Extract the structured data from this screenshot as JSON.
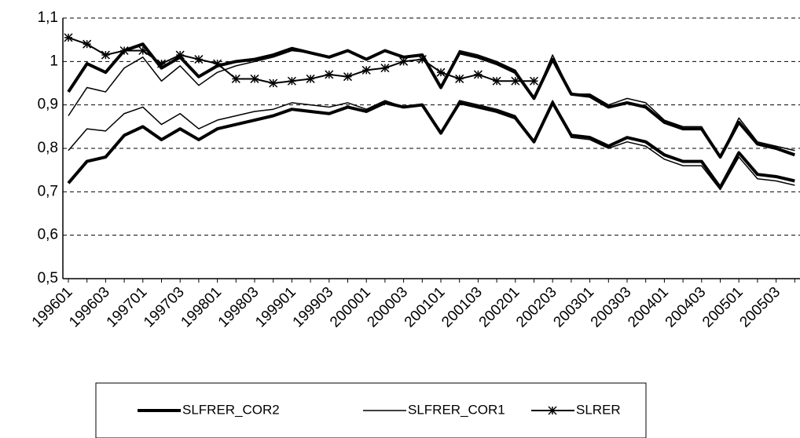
{
  "chart_data": {
    "type": "line",
    "categories": [
      "199601",
      null,
      "199603",
      null,
      "199701",
      null,
      "199703",
      null,
      "199801",
      null,
      "199803",
      null,
      "199901",
      null,
      "199903",
      null,
      "200001",
      null,
      "200003",
      null,
      "200101",
      null,
      "200103",
      null,
      "200201",
      null,
      "200203",
      null,
      "200301",
      null,
      "200303",
      null,
      "200401",
      null,
      "200403",
      null,
      "200501",
      null,
      "200503",
      null
    ],
    "ylim": [
      0.5,
      1.1
    ],
    "yticks": [
      {
        "value": 0.5,
        "label": "0,5"
      },
      {
        "value": 0.6,
        "label": "0,6"
      },
      {
        "value": 0.7,
        "label": "0,7"
      },
      {
        "value": 0.8,
        "label": "0,8"
      },
      {
        "value": 0.9,
        "label": "0,9"
      },
      1,
      {
        "value": 1.1,
        "label": "1,1"
      }
    ],
    "grid": true,
    "legend": "bottom",
    "series": [
      {
        "name": "SLFRER_COR2",
        "color": "#000000",
        "width": 4,
        "lines": [
          [
            0.93,
            0.995,
            0.975,
            1.025,
            1.04,
            0.985,
            1.01,
            0.965,
            0.99,
            1.0,
            1.005,
            1.015,
            1.03,
            1.02,
            1.01,
            1.025,
            1.005,
            1.025,
            1.01,
            1.015,
            0.94,
            1.02,
            1.01,
            0.995,
            0.975,
            0.915,
            1.005,
            0.925,
            0.92,
            0.895,
            0.905,
            0.895,
            0.86,
            0.845,
            0.845,
            0.78,
            0.86,
            0.81,
            0.8,
            0.785
          ],
          [
            0.72,
            0.77,
            0.78,
            0.83,
            0.85,
            0.82,
            0.845,
            0.82,
            0.845,
            0.855,
            0.865,
            0.875,
            0.89,
            0.885,
            0.88,
            0.895,
            0.885,
            0.905,
            0.895,
            0.9,
            0.835,
            0.905,
            0.895,
            0.885,
            0.87,
            0.815,
            0.905,
            0.83,
            0.825,
            0.805,
            0.825,
            0.815,
            0.785,
            0.77,
            0.77,
            0.71,
            0.79,
            0.74,
            0.735,
            0.725
          ]
        ]
      },
      {
        "name": "SLFRER_COR1",
        "color": "#000000",
        "width": 1.5,
        "lines": [
          [
            0.875,
            0.94,
            0.93,
            0.985,
            1.01,
            0.955,
            0.99,
            0.945,
            0.975,
            0.99,
            1.0,
            1.01,
            1.025,
            1.02,
            1.01,
            1.025,
            1.005,
            1.025,
            1.01,
            1.015,
            0.94,
            1.025,
            1.015,
            1.0,
            0.98,
            0.915,
            1.015,
            0.925,
            0.925,
            0.9,
            0.915,
            0.905,
            0.865,
            0.85,
            0.85,
            0.78,
            0.87,
            0.815,
            0.805,
            0.795
          ],
          [
            0.795,
            0.845,
            0.84,
            0.88,
            0.895,
            0.855,
            0.88,
            0.845,
            0.865,
            0.875,
            0.885,
            0.89,
            0.905,
            0.9,
            0.895,
            0.905,
            0.89,
            0.91,
            0.895,
            0.9,
            0.835,
            0.91,
            0.9,
            0.89,
            0.875,
            0.815,
            0.91,
            0.825,
            0.82,
            0.8,
            0.815,
            0.805,
            0.775,
            0.76,
            0.76,
            0.705,
            0.78,
            0.73,
            0.725,
            0.715
          ]
        ]
      },
      {
        "name": "SLRER",
        "color": "#000000",
        "width": 2,
        "marker": "star",
        "lines": [
          [
            1.055,
            1.04,
            1.015,
            1.025,
            1.025,
            0.995,
            1.015,
            1.005,
            0.995,
            0.96,
            0.96,
            0.95,
            0.955,
            0.96,
            0.97,
            0.965,
            0.98,
            0.985,
            1.0,
            1.005,
            0.975,
            0.96,
            0.97,
            0.955,
            0.955,
            0.955,
            null,
            null,
            null,
            null,
            null,
            null,
            null,
            null,
            null,
            null,
            null,
            null,
            null,
            null
          ]
        ]
      }
    ]
  }
}
